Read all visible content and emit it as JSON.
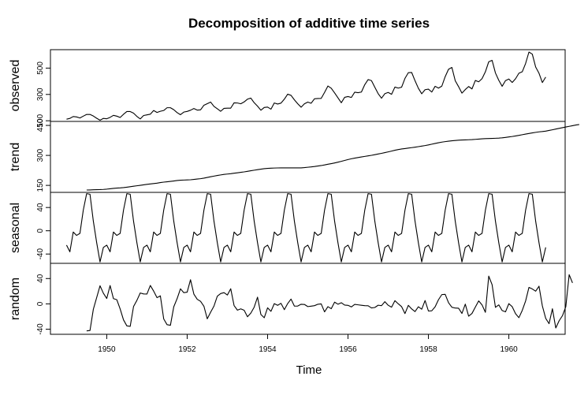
{
  "chart_data": {
    "type": "line",
    "title": "Decomposition of additive time series",
    "xlabel": "Time",
    "xlim": [
      1948.6,
      1961.4
    ],
    "xticks": [
      1950,
      1952,
      1954,
      1956,
      1958,
      1960
    ],
    "start": 1949,
    "frequency": 12,
    "panels": [
      {
        "name": "observed",
        "ylabel": "observed",
        "ylim": [
          95,
          640
        ],
        "yticks": [
          100,
          300,
          500
        ],
        "values": [
          112,
          118,
          132,
          129,
          121,
          135,
          148,
          148,
          136,
          119,
          104,
          118,
          115,
          126,
          141,
          135,
          125,
          149,
          170,
          170,
          158,
          133,
          114,
          140,
          145,
          150,
          178,
          163,
          172,
          178,
          199,
          199,
          184,
          162,
          146,
          166,
          171,
          180,
          193,
          181,
          183,
          218,
          230,
          242,
          209,
          191,
          172,
          194,
          196,
          196,
          236,
          235,
          229,
          243,
          264,
          272,
          237,
          211,
          180,
          201,
          204,
          188,
          235,
          227,
          234,
          264,
          302,
          293,
          259,
          229,
          203,
          229,
          242,
          233,
          267,
          269,
          270,
          315,
          364,
          347,
          312,
          274,
          237,
          278,
          284,
          277,
          317,
          313,
          318,
          374,
          413,
          405,
          355,
          306,
          271,
          306,
          315,
          301,
          356,
          348,
          355,
          422,
          465,
          467,
          404,
          347,
          305,
          336,
          340,
          318,
          362,
          348,
          363,
          435,
          491,
          505,
          404,
          359,
          310,
          337,
          360,
          342,
          406,
          396,
          420,
          472,
          548,
          559,
          463,
          407,
          362,
          405,
          417,
          391,
          419,
          461,
          472,
          535,
          622,
          606,
          508,
          461,
          390,
          432
        ]
      },
      {
        "name": "trend",
        "ylabel": "trend",
        "ylim": [
          115,
          470
        ],
        "yticks": [
          150,
          300,
          450
        ],
        "values": [
          null,
          null,
          null,
          null,
          null,
          null,
          126.8,
          127.2,
          127.9,
          128.6,
          129.0,
          129.8,
          131.2,
          133.1,
          134.9,
          136.4,
          137.4,
          138.8,
          140.9,
          143.2,
          145.7,
          148.0,
          150.4,
          152.8,
          155.1,
          157.1,
          159.0,
          161.2,
          163.9,
          166.3,
          168.1,
          170.0,
          172.1,
          174.3,
          175.8,
          176.6,
          177.2,
          178.1,
          179.8,
          181.7,
          183.5,
          186.3,
          189.8,
          193.3,
          196.4,
          199.4,
          202.3,
          204.9,
          206.7,
          208.4,
          210.8,
          213.0,
          215.3,
          217.5,
          220.4,
          223.3,
          225.9,
          228.7,
          231.3,
          233.4,
          234.9,
          236.0,
          236.8,
          237.3,
          237.6,
          237.7,
          237.7,
          237.6,
          237.5,
          237.4,
          237.7,
          239.0,
          240.7,
          242.3,
          244.3,
          246.8,
          249.2,
          252.2,
          255.6,
          258.8,
          262.3,
          266.1,
          270.2,
          274.8,
          279.2,
          283.1,
          286.4,
          289.4,
          292.3,
          295.0,
          297.6,
          300.4,
          303.6,
          307.0,
          310.3,
          313.9,
          317.6,
          321.6,
          325.7,
          329.3,
          332.1,
          334.3,
          336.6,
          338.8,
          341.2,
          343.8,
          346.5,
          349.2,
          352.5,
          356.2,
          359.8,
          363.2,
          366.4,
          369.0,
          371.3,
          373.2,
          374.8,
          376.0,
          376.9,
          377.7,
          378.3,
          379.1,
          380.3,
          381.7,
          382.9,
          384.0,
          384.6,
          385.1,
          385.7,
          386.6,
          388.0,
          390.0,
          392.2,
          394.6,
          397.4,
          400.2,
          403.5,
          406.7,
          409.6,
          412.5,
          415.2,
          417.7,
          419.4,
          421.5,
          424.8,
          428.1,
          431.7,
          435.2,
          438.8,
          442.2,
          445.3,
          448.7,
          451.9,
          454.6,
          null,
          null,
          null,
          null,
          null,
          null
        ]
      },
      {
        "name": "seasonal",
        "ylabel": "seasonal",
        "ylim": [
          -56,
          66
        ],
        "yticks": [
          -40,
          0,
          40
        ],
        "values": [
          -24.7,
          -36.2,
          -2.2,
          -8.0,
          -4.5,
          35.4,
          63.8,
          62.8,
          16.5,
          -20.6,
          -53.6,
          -28.6
        ]
      },
      {
        "name": "random",
        "ylabel": "random",
        "ylim": [
          -48,
          64
        ],
        "yticks": [
          -40,
          0,
          40
        ],
        "values": [
          null,
          null,
          null,
          null,
          null,
          null,
          -42.6,
          -42.0,
          -8.5,
          10.0,
          28.6,
          16.8,
          8.5,
          29.0,
          8.3,
          6.6,
          -7.9,
          -25.2,
          -34.7,
          -35.5,
          -4.2,
          5.6,
          17.2,
          15.7,
          15.6,
          29.1,
          20.2,
          9.8,
          12.7,
          -23.7,
          -32.8,
          -33.8,
          -4.6,
          8.3,
          23.8,
          17.7,
          18.5,
          38.1,
          15.4,
          7.3,
          4.0,
          -3.7,
          -23.6,
          -13.1,
          -3.5,
          12.2,
          16.3,
          17.7,
          14.0,
          23.9,
          -2.6,
          -9.9,
          -7.9,
          -10.1,
          -20.3,
          -14.6,
          -5.2,
          10.6,
          -16.7,
          -21.9,
          -6.2,
          -11.8,
          0.4,
          -2.3,
          0.9,
          -9.1,
          0.5,
          7.6,
          -3.5,
          -3.4,
          -0.6,
          -0.9,
          -4.3,
          -3.6,
          -2.8,
          -0.6,
          0.0,
          -12.6,
          -4.4,
          -7.6,
          2.7,
          -0.5,
          1.8,
          -1.9,
          -2.3,
          -4.8,
          -0.8,
          -1.5,
          -2.2,
          -2.8,
          -3.0,
          -6.4,
          -5.7,
          -2.1,
          -2.8,
          3.5,
          -2.2,
          -5.2,
          5.1,
          0.1,
          -4.4,
          -15.3,
          -2.3,
          -8.0,
          -12.2,
          -4.5,
          -8.4,
          5.3,
          -11.3,
          -10.9,
          -4.6,
          6.6,
          14.7,
          15.1,
          1.9,
          -5.3,
          -6.6,
          -6.9,
          -15.1,
          -0.4,
          -19.4,
          -15.1,
          -5.0,
          4.7,
          -1.6,
          -13.3,
          43.9,
          30.3,
          -5.4,
          -1.6,
          -10.5,
          -12.6,
          0.4,
          -4.4,
          -15.5,
          -21.8,
          -10.3,
          4.5,
          26.0,
          23.5,
          20.1,
          27.9,
          -3.2,
          -22.9,
          -31.2,
          -7.7,
          -38.0,
          -26.7,
          -18.6,
          -4.4,
          46.1,
          33.1,
          null,
          null,
          null,
          null,
          null,
          null
        ]
      }
    ]
  }
}
